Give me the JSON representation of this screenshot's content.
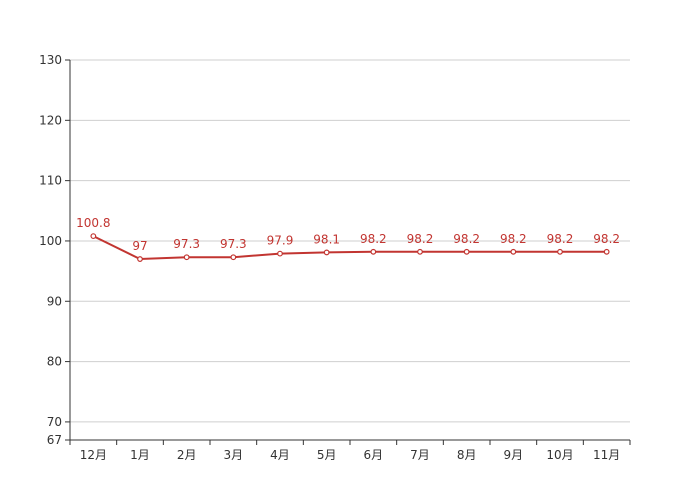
{
  "chart_data": {
    "type": "line",
    "title": "",
    "xlabel": "",
    "ylabel": "",
    "categories": [
      "12月",
      "1月",
      "2月",
      "3月",
      "4月",
      "5月",
      "6月",
      "7月",
      "8月",
      "9月",
      "10月",
      "11月"
    ],
    "series": [
      {
        "values": [
          100.8,
          97,
          97.3,
          97.3,
          97.9,
          98.1,
          98.2,
          98.2,
          98.2,
          98.2,
          98.2,
          98.2
        ],
        "color": "#c23531"
      }
    ],
    "ylim": [
      67,
      130
    ],
    "yticks": [
      67,
      70,
      80,
      90,
      100,
      110,
      120,
      130
    ],
    "grid": true,
    "data_labels": true,
    "legend": "none"
  }
}
